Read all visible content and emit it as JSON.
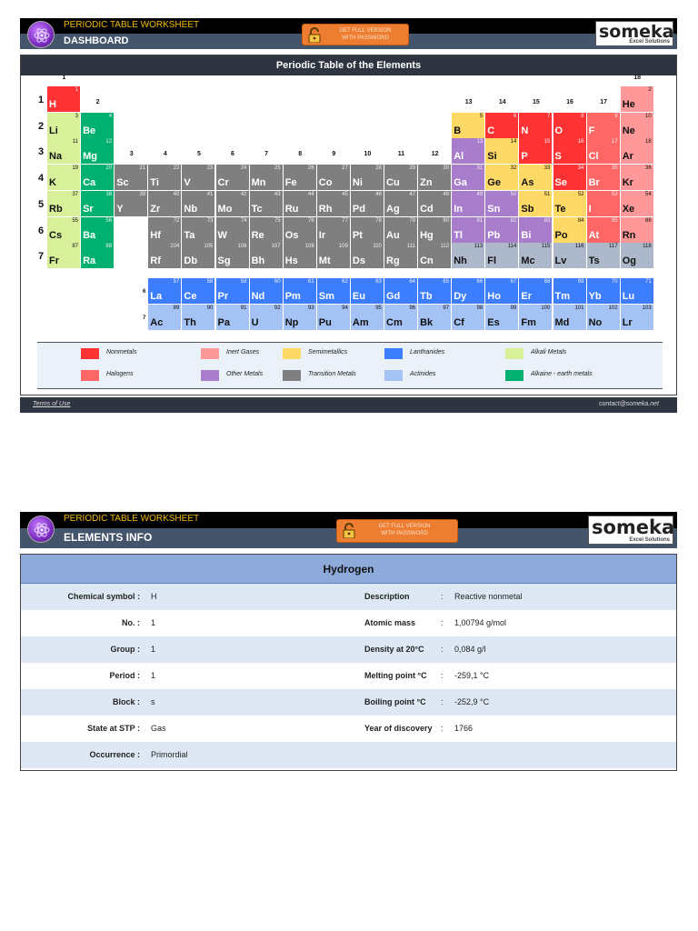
{
  "dashboard": {
    "header": {
      "subtitle": "PERIODIC TABLE WORKSHEET",
      "title": "DASHBOARD",
      "button": [
        "GET FULL VERSION",
        "WITH PASSWORD"
      ],
      "brand": "someka",
      "brand_sub": "Excel Solutions"
    },
    "panel_title": "Periodic Table of the Elements",
    "group_labels": [
      "1",
      "2",
      "3",
      "4",
      "5",
      "6",
      "7",
      "8",
      "9",
      "10",
      "11",
      "12",
      "13",
      "14",
      "15",
      "16",
      "17",
      "18"
    ],
    "period_labels": [
      "1",
      "2",
      "3",
      "4",
      "5",
      "6",
      "7"
    ],
    "f_period_labels": [
      "6",
      "7"
    ],
    "colors": {
      "nonmetal": "#ff3333",
      "halogen": "#ff6666",
      "inert": "#ff9999",
      "semi": "#ffd966",
      "other": "#a87dcc",
      "transition": "#7f7f7f",
      "lanth": "#3d7dff",
      "actin": "#a4c2f4",
      "alkali": "#d9f09b",
      "alkaline": "#00b070",
      "unknown": "#adb9ca"
    },
    "elements": [
      [
        "1",
        "H",
        1,
        1,
        "nonmetal"
      ],
      [
        "2",
        "He",
        18,
        1,
        "inert"
      ],
      [
        "3",
        "Li",
        1,
        2,
        "alkali"
      ],
      [
        "4",
        "Be",
        2,
        2,
        "alkaline"
      ],
      [
        "5",
        "B",
        13,
        2,
        "semi"
      ],
      [
        "6",
        "C",
        14,
        2,
        "nonmetal"
      ],
      [
        "7",
        "N",
        15,
        2,
        "nonmetal"
      ],
      [
        "8",
        "O",
        16,
        2,
        "nonmetal"
      ],
      [
        "9",
        "F",
        17,
        2,
        "halogen"
      ],
      [
        "10",
        "Ne",
        18,
        2,
        "inert"
      ],
      [
        "11",
        "Na",
        1,
        3,
        "alkali"
      ],
      [
        "12",
        "Mg",
        2,
        3,
        "alkaline"
      ],
      [
        "13",
        "Al",
        13,
        3,
        "other"
      ],
      [
        "14",
        "Si",
        14,
        3,
        "semi"
      ],
      [
        "15",
        "P",
        15,
        3,
        "nonmetal"
      ],
      [
        "16",
        "S",
        16,
        3,
        "nonmetal"
      ],
      [
        "17",
        "Cl",
        17,
        3,
        "halogen"
      ],
      [
        "18",
        "Ar",
        18,
        3,
        "inert"
      ],
      [
        "19",
        "K",
        1,
        4,
        "alkali"
      ],
      [
        "20",
        "Ca",
        2,
        4,
        "alkaline"
      ],
      [
        "21",
        "Sc",
        3,
        4,
        "transition"
      ],
      [
        "22",
        "Ti",
        4,
        4,
        "transition"
      ],
      [
        "23",
        "V",
        5,
        4,
        "transition"
      ],
      [
        "24",
        "Cr",
        6,
        4,
        "transition"
      ],
      [
        "25",
        "Mn",
        7,
        4,
        "transition"
      ],
      [
        "26",
        "Fe",
        8,
        4,
        "transition"
      ],
      [
        "27",
        "Co",
        9,
        4,
        "transition"
      ],
      [
        "28",
        "Ni",
        10,
        4,
        "transition"
      ],
      [
        "29",
        "Cu",
        11,
        4,
        "transition"
      ],
      [
        "30",
        "Zn",
        12,
        4,
        "transition"
      ],
      [
        "31",
        "Ga",
        13,
        4,
        "other"
      ],
      [
        "32",
        "Ge",
        14,
        4,
        "semi"
      ],
      [
        "33",
        "As",
        15,
        4,
        "semi"
      ],
      [
        "34",
        "Se",
        16,
        4,
        "nonmetal"
      ],
      [
        "35",
        "Br",
        17,
        4,
        "halogen"
      ],
      [
        "36",
        "Kr",
        18,
        4,
        "inert"
      ],
      [
        "37",
        "Rb",
        1,
        5,
        "alkali"
      ],
      [
        "38",
        "Sr",
        2,
        5,
        "alkaline"
      ],
      [
        "39",
        "Y",
        3,
        5,
        "transition"
      ],
      [
        "40",
        "Zr",
        4,
        5,
        "transition"
      ],
      [
        "41",
        "Nb",
        5,
        5,
        "transition"
      ],
      [
        "42",
        "Mo",
        6,
        5,
        "transition"
      ],
      [
        "43",
        "Tc",
        7,
        5,
        "transition"
      ],
      [
        "44",
        "Ru",
        8,
        5,
        "transition"
      ],
      [
        "45",
        "Rh",
        9,
        5,
        "transition"
      ],
      [
        "46",
        "Pd",
        10,
        5,
        "transition"
      ],
      [
        "47",
        "Ag",
        11,
        5,
        "transition"
      ],
      [
        "48",
        "Cd",
        12,
        5,
        "transition"
      ],
      [
        "49",
        "In",
        13,
        5,
        "other"
      ],
      [
        "50",
        "Sn",
        14,
        5,
        "other"
      ],
      [
        "51",
        "Sb",
        15,
        5,
        "semi"
      ],
      [
        "52",
        "Te",
        16,
        5,
        "semi"
      ],
      [
        "53",
        "I",
        17,
        5,
        "halogen"
      ],
      [
        "54",
        "Xe",
        18,
        5,
        "inert"
      ],
      [
        "55",
        "Cs",
        1,
        6,
        "alkali"
      ],
      [
        "56",
        "Ba",
        2,
        6,
        "alkaline"
      ],
      [
        "72",
        "Hf",
        4,
        6,
        "transition"
      ],
      [
        "73",
        "Ta",
        5,
        6,
        "transition"
      ],
      [
        "74",
        "W",
        6,
        6,
        "transition"
      ],
      [
        "75",
        "Re",
        7,
        6,
        "transition"
      ],
      [
        "76",
        "Os",
        8,
        6,
        "transition"
      ],
      [
        "77",
        "Ir",
        9,
        6,
        "transition"
      ],
      [
        "78",
        "Pt",
        10,
        6,
        "transition"
      ],
      [
        "79",
        "Au",
        11,
        6,
        "transition"
      ],
      [
        "80",
        "Hg",
        12,
        6,
        "transition"
      ],
      [
        "81",
        "Tl",
        13,
        6,
        "other"
      ],
      [
        "82",
        "Pb",
        14,
        6,
        "other"
      ],
      [
        "83",
        "Bi",
        15,
        6,
        "other"
      ],
      [
        "84",
        "Po",
        16,
        6,
        "semi"
      ],
      [
        "85",
        "At",
        17,
        6,
        "halogen"
      ],
      [
        "86",
        "Rn",
        18,
        6,
        "inert"
      ],
      [
        "87",
        "Fr",
        1,
        7,
        "alkali"
      ],
      [
        "88",
        "Ra",
        2,
        7,
        "alkaline"
      ],
      [
        "104",
        "Rf",
        4,
        7,
        "transition"
      ],
      [
        "105",
        "Db",
        5,
        7,
        "transition"
      ],
      [
        "106",
        "Sg",
        6,
        7,
        "transition"
      ],
      [
        "107",
        "Bh",
        7,
        7,
        "transition"
      ],
      [
        "108",
        "Hs",
        8,
        7,
        "transition"
      ],
      [
        "109",
        "Mt",
        9,
        7,
        "transition"
      ],
      [
        "110",
        "Ds",
        10,
        7,
        "transition"
      ],
      [
        "111",
        "Rg",
        11,
        7,
        "transition"
      ],
      [
        "112",
        "Cn",
        12,
        7,
        "transition"
      ],
      [
        "113",
        "Nh",
        13,
        7,
        "unknown"
      ],
      [
        "114",
        "Fl",
        14,
        7,
        "unknown"
      ],
      [
        "115",
        "Mc",
        15,
        7,
        "unknown"
      ],
      [
        "116",
        "Lv",
        16,
        7,
        "unknown"
      ],
      [
        "117",
        "Ts",
        17,
        7,
        "unknown"
      ],
      [
        "118",
        "Og",
        18,
        7,
        "unknown"
      ],
      [
        "57",
        "La",
        4,
        9,
        "lanth"
      ],
      [
        "58",
        "Ce",
        5,
        9,
        "lanth"
      ],
      [
        "59",
        "Pr",
        6,
        9,
        "lanth"
      ],
      [
        "60",
        "Nd",
        7,
        9,
        "lanth"
      ],
      [
        "61",
        "Pm",
        8,
        9,
        "lanth"
      ],
      [
        "62",
        "Sm",
        9,
        9,
        "lanth"
      ],
      [
        "63",
        "Eu",
        10,
        9,
        "lanth"
      ],
      [
        "64",
        "Gd",
        11,
        9,
        "lanth"
      ],
      [
        "65",
        "Tb",
        12,
        9,
        "lanth"
      ],
      [
        "66",
        "Dy",
        13,
        9,
        "lanth"
      ],
      [
        "67",
        "Ho",
        14,
        9,
        "lanth"
      ],
      [
        "68",
        "Er",
        15,
        9,
        "lanth"
      ],
      [
        "69",
        "Tm",
        16,
        9,
        "lanth"
      ],
      [
        "70",
        "Yb",
        17,
        9,
        "lanth"
      ],
      [
        "71",
        "Lu",
        18,
        9,
        "lanth"
      ],
      [
        "89",
        "Ac",
        4,
        10,
        "actin"
      ],
      [
        "90",
        "Th",
        5,
        10,
        "actin"
      ],
      [
        "91",
        "Pa",
        6,
        10,
        "actin"
      ],
      [
        "92",
        "U",
        7,
        10,
        "actin"
      ],
      [
        "93",
        "Np",
        8,
        10,
        "actin"
      ],
      [
        "94",
        "Pu",
        9,
        10,
        "actin"
      ],
      [
        "95",
        "Am",
        10,
        10,
        "actin"
      ],
      [
        "96",
        "Cm",
        11,
        10,
        "actin"
      ],
      [
        "97",
        "Bk",
        12,
        10,
        "actin"
      ],
      [
        "98",
        "Cf",
        13,
        10,
        "actin"
      ],
      [
        "99",
        "Es",
        14,
        10,
        "actin"
      ],
      [
        "100",
        "Fm",
        15,
        10,
        "actin"
      ],
      [
        "101",
        "Md",
        16,
        10,
        "actin"
      ],
      [
        "102",
        "No",
        17,
        10,
        "actin"
      ],
      [
        "103",
        "Lr",
        18,
        10,
        "actin"
      ]
    ],
    "legend": [
      {
        "label": "Nonmetals",
        "color": "#ff3333"
      },
      {
        "label": "Halogens",
        "color": "#ff6666"
      },
      {
        "label": "Inert Gases",
        "color": "#ff9999"
      },
      {
        "label": "Other Metals",
        "color": "#a87dcc"
      },
      {
        "label": "Semimetallics",
        "color": "#ffd966"
      },
      {
        "label": "Transition Metals",
        "color": "#7f7f7f"
      },
      {
        "label": "Lanthanides",
        "color": "#3d7dff"
      },
      {
        "label": "Actinides",
        "color": "#a4c2f4"
      },
      {
        "label": "Alkali Metals",
        "color": "#d9f09b"
      },
      {
        "label": "Alkaine - earth metals",
        "color": "#00b070"
      }
    ],
    "footer": {
      "terms": "Terms of Use",
      "contact": "contact@someka.net"
    }
  },
  "info": {
    "header": {
      "subtitle": "PERIODIC TABLE WORKSHEET",
      "title": "ELEMENTS INFO",
      "button": [
        "GET FULL VERSION",
        "WITH PASSWORD"
      ],
      "brand": "someka",
      "brand_sub": "Excel Solutions"
    },
    "element_name": "Hydrogen",
    "left": [
      {
        "label": "Chemical symbol :",
        "value": "H"
      },
      {
        "label": "No. :",
        "value": "1"
      },
      {
        "label": "Group :",
        "value": "1"
      },
      {
        "label": "Period :",
        "value": "1"
      },
      {
        "label": "Block :",
        "value": "s"
      },
      {
        "label": "State at STP :",
        "value": "Gas"
      },
      {
        "label": "Occurrence :",
        "value": "Primordial"
      }
    ],
    "right": [
      {
        "label": "Description",
        "value": "Reactive nonmetal"
      },
      {
        "label": "Atomic mass",
        "value": "1,00794 g/mol"
      },
      {
        "label": "Density at 20°C",
        "value": "0,084 g/l"
      },
      {
        "label": "Melting point °C",
        "value": "-259,1 °C"
      },
      {
        "label": "Boiling point °C",
        "value": "-252,9 °C"
      },
      {
        "label": "Year of discovery",
        "value": "1766"
      },
      {
        "label": "",
        "value": ""
      }
    ]
  }
}
